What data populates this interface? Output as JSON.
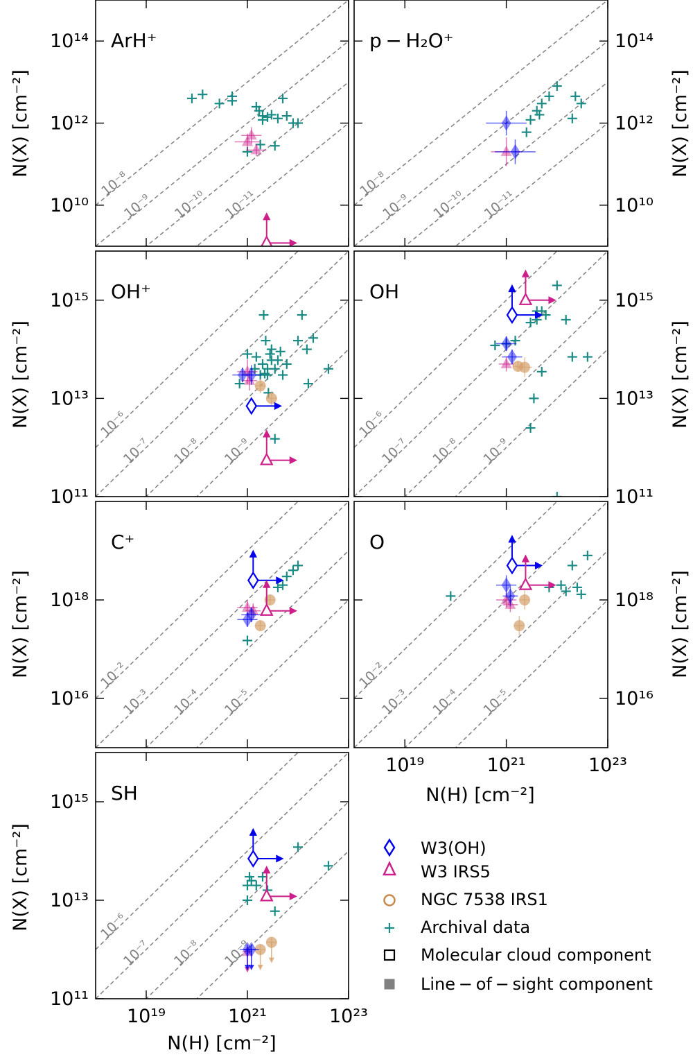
{
  "figure": {
    "xlabel": "N(H) [cm⁻²]",
    "ylabel": "N(X) [cm⁻²]"
  },
  "legend": {
    "entries": [
      {
        "marker": "diamond-open",
        "color": "#0000ee",
        "label": "W3(OH)"
      },
      {
        "marker": "triangle-open",
        "color": "#cc1f8a",
        "label": "W3 IRS5"
      },
      {
        "marker": "circle-open",
        "color": "#c8884a",
        "label": "NGC 7538 IRS1"
      },
      {
        "marker": "plus",
        "color": "#1a8a84",
        "label": "Archival data"
      },
      {
        "marker": "square-open",
        "color": "#000000",
        "label": "Molecular cloud component"
      },
      {
        "marker": "square-filled",
        "color": "#808080",
        "label": "Line − of − sight component"
      }
    ]
  },
  "colors": {
    "w3oh": "#0000ee",
    "w3irs5": "#cc1f8a",
    "ngc7538": "#d4a06a",
    "archival": "#1a8a84",
    "ratio_line": "#808080"
  },
  "chart_data": [
    {
      "id": "arhp",
      "type": "scatter",
      "title": "ArH⁺",
      "x_scale": "log",
      "y_scale": "log",
      "xlim": [
        1e+18,
        1e+23
      ],
      "ylim": [
        1000000000.0,
        1000000000000000.0
      ],
      "y_ticks": [
        "10¹⁰",
        "10¹²",
        "10¹⁴"
      ],
      "y_tick_values": [
        10000000000.0,
        1000000000000.0,
        100000000000000.0
      ],
      "ratio_lines": [
        {
          "ratio": 1e-08,
          "label": "10⁻⁸"
        },
        {
          "ratio": 1e-09,
          "label": "10⁻⁹"
        },
        {
          "ratio": 1e-10,
          "label": "10⁻¹⁰"
        },
        {
          "ratio": 1e-11,
          "label": "10⁻¹¹"
        }
      ],
      "archival": [
        [
          8e+19,
          4000000000000.0
        ],
        [
          1.3e+20,
          5000000000000.0
        ],
        [
          2.8e+20,
          3000000000000.0
        ],
        [
          5e+20,
          3500000000000.0
        ],
        [
          5e+20,
          4500000000000.0
        ],
        [
          1.5e+21,
          2500000000000.0
        ],
        [
          2e+21,
          1500000000000.0
        ],
        [
          3e+21,
          1600000000000.0
        ],
        [
          5e+21,
          4000000000000.0
        ],
        [
          1e+22,
          1000000000000.0
        ],
        [
          1.7e+21,
          2000000000000.0
        ],
        [
          4e+21,
          1300000000000.0
        ],
        [
          6e+21,
          1500000000000.0
        ],
        [
          8e+21,
          1000000000000.0
        ],
        [
          2e+21,
          1200000000000.0
        ],
        [
          2.5e+21,
          1400000000000.0
        ],
        [
          1.8e+21,
          300000000000.0
        ],
        [
          3.5e+21,
          280000000000.0
        ],
        [
          1e+21,
          200000000000.0
        ]
      ],
      "w3oh": [],
      "w3irs5": [
        {
          "x": 1e+21,
          "y": 350000000000.0,
          "xerr": 0.25,
          "yerr": 0.2,
          "filled": true
        },
        {
          "x": 1.2e+21,
          "y": 500000000000.0,
          "xerr": 0.2,
          "yerr": 0.2,
          "filled": true
        },
        {
          "x": 1.5e+21,
          "y": 220000000000.0,
          "xerr": 0.2,
          "yerr": 0.15,
          "filled": true
        }
      ],
      "w3irs5_limits": [
        {
          "x": 2.4e+21,
          "y": 1200000000.0,
          "arrow_up": true,
          "arrow_right": true
        }
      ],
      "ngc7538": [],
      "w3oh_limits": []
    },
    {
      "id": "ph2op",
      "type": "scatter",
      "title": "p − H₂O⁺",
      "x_scale": "log",
      "y_scale": "log",
      "xlim": [
        1e+18,
        1e+23
      ],
      "ylim": [
        1000000000.0,
        1000000000000000.0
      ],
      "y_ticks": [
        "10¹⁰",
        "10¹²",
        "10¹⁴"
      ],
      "y_tick_values": [
        10000000000.0,
        1000000000000.0,
        100000000000000.0
      ],
      "ratio_lines": [
        {
          "ratio": 1e-08,
          "label": "10⁻⁸"
        },
        {
          "ratio": 1e-09,
          "label": "10⁻⁹"
        },
        {
          "ratio": 1e-10,
          "label": "10⁻¹⁰"
        },
        {
          "ratio": 1e-11,
          "label": "10⁻¹¹"
        }
      ],
      "archival": [
        [
          3e+21,
          1200000000000.0
        ],
        [
          4e+21,
          2000000000000.0
        ],
        [
          5e+21,
          3000000000000.0
        ],
        [
          7e+21,
          4500000000000.0
        ],
        [
          1e+22,
          8000000000000.0
        ],
        [
          2e+22,
          1300000000000.0
        ],
        [
          2.3e+22,
          4500000000000.0
        ],
        [
          3e+22,
          3000000000000.0
        ],
        [
          2.5e+21,
          600000000000.0
        ],
        [
          4.5e+21,
          1600000000000.0
        ]
      ],
      "w3oh": [
        {
          "x": 1e+21,
          "y": 1000000000000.0,
          "xerr": 0.4,
          "yerr": 0.3,
          "filled": true
        },
        {
          "x": 1.5e+21,
          "y": 200000000000.0,
          "xerr": 0.4,
          "yerr": 0.3,
          "filled": true
        }
      ],
      "w3irs5": [
        {
          "x": 1e+21,
          "y": 200000000000.0,
          "xerr": 0.3,
          "yerr": 0.35,
          "filled": true
        }
      ],
      "w3irs5_limits": [],
      "ngc7538": [],
      "w3oh_limits": []
    },
    {
      "id": "ohp",
      "type": "scatter",
      "title": "OH⁺",
      "x_scale": "log",
      "y_scale": "log",
      "xlim": [
        1e+18,
        1e+23
      ],
      "ylim": [
        100000000000.0,
        1e+16
      ],
      "y_ticks": [
        "10¹¹",
        "10¹³",
        "10¹⁵"
      ],
      "y_tick_values": [
        100000000000.0,
        10000000000000.0,
        1000000000000000.0
      ],
      "ratio_lines": [
        {
          "ratio": 1e-06,
          "label": "10⁻⁶"
        },
        {
          "ratio": 1e-07,
          "label": "10⁻⁷"
        },
        {
          "ratio": 1e-08,
          "label": "10⁻⁸"
        },
        {
          "ratio": 1e-09,
          "label": "10⁻⁹"
        }
      ],
      "archival": [
        [
          7e+20,
          20000000000000.0
        ],
        [
          1e+21,
          80000000000000.0
        ],
        [
          1.4e+21,
          40000000000000.0
        ],
        [
          2e+21,
          50000000000000.0
        ],
        [
          2.1e+21,
          500000000000000.0
        ],
        [
          2.3e+21,
          150000000000000.0
        ],
        [
          2.5e+21,
          30000000000000.0
        ],
        [
          2.8e+21,
          80000000000000.0
        ],
        [
          3e+21,
          60000000000000.0
        ],
        [
          3.5e+21,
          40000000000000.0
        ],
        [
          4e+21,
          60000000000000.0
        ],
        [
          5e+21,
          30000000000000.0
        ],
        [
          6e+21,
          50000000000000.0
        ],
        [
          1e+22,
          150000000000000.0
        ],
        [
          1.2e+22,
          500000000000000.0
        ],
        [
          1.5e+22,
          100000000000000.0
        ],
        [
          1.6e+22,
          20000000000000.0
        ],
        [
          2e+22,
          170000000000000.0
        ],
        [
          4e+22,
          40000000000000.0
        ],
        [
          3e+21,
          100000000000000.0
        ],
        [
          4.5e+21,
          90000000000000.0
        ],
        [
          2.5e+21,
          40000000000000.0
        ],
        [
          3.5e+21,
          1500000000000.0
        ],
        [
          1.5e+21,
          70000000000000.0
        ],
        [
          2.6e+21,
          13000000000000.0
        ],
        [
          2.2e+21,
          32000000000000.0
        ],
        [
          1.8e+21,
          30000000000000.0
        ]
      ],
      "w3oh": [
        {
          "x": 1.2e+21,
          "y": 30000000000000.0,
          "xerr": 0.2,
          "yerr": 0.2,
          "filled": true
        },
        {
          "x": 8e+20,
          "y": 30000000000000.0,
          "xerr": 0.2,
          "yerr": 0.15,
          "filled": true
        }
      ],
      "w3oh_limits": [
        {
          "x": 1.2e+21,
          "y": 7000000000000.0,
          "arrow_up": false,
          "arrow_right": true
        }
      ],
      "w3irs5": [
        {
          "x": 1e+21,
          "y": 35000000000000.0,
          "xerr": 0.2,
          "yerr": 0.25,
          "filled": true
        },
        {
          "x": 1.1e+21,
          "y": 23000000000000.0,
          "xerr": 0.15,
          "yerr": 0.2,
          "filled": true
        }
      ],
      "w3irs5_limits": [
        {
          "x": 2.4e+21,
          "y": 550000000000.0,
          "arrow_up": true,
          "arrow_right": true
        }
      ],
      "ngc7538": [
        {
          "x": 1.8e+21,
          "y": 18000000000000.0,
          "xerr": 0.1,
          "yerr": 0.15
        },
        {
          "x": 3e+21,
          "y": 10000000000000.0,
          "xerr": 0.1,
          "yerr": 0.15
        }
      ]
    },
    {
      "id": "oh",
      "type": "scatter",
      "title": "OH",
      "x_scale": "log",
      "y_scale": "log",
      "xlim": [
        1e+18,
        1e+23
      ],
      "ylim": [
        100000000000.0,
        1e+16
      ],
      "y_ticks": [
        "10¹¹",
        "10¹³",
        "10¹⁵"
      ],
      "y_tick_values": [
        100000000000.0,
        10000000000000.0,
        1000000000000000.0
      ],
      "ratio_lines": [
        {
          "ratio": 1e-06,
          "label": "10⁻⁶"
        },
        {
          "ratio": 1e-07,
          "label": "10⁻⁷"
        },
        {
          "ratio": 1e-08,
          "label": "10⁻⁸"
        },
        {
          "ratio": 1e-09,
          "label": "10⁻⁹"
        }
      ],
      "archival": [
        [
          6e+20,
          120000000000000.0
        ],
        [
          1e+21,
          130000000000000.0
        ],
        [
          1.5e+21,
          150000000000000.0
        ],
        [
          3e+21,
          350000000000000.0
        ],
        [
          4e+21,
          400000000000000.0
        ],
        [
          5e+21,
          600000000000000.0
        ],
        [
          6e+21,
          500000000000000.0
        ],
        [
          1e+22,
          2000000000000000.0
        ],
        [
          1.5e+22,
          400000000000000.0
        ],
        [
          2e+22,
          70000000000000.0
        ],
        [
          4e+22,
          70000000000000.0
        ],
        [
          3.5e+21,
          10000000000000.0
        ],
        [
          3e+21,
          2500000000000.0
        ],
        [
          5e+21,
          35000000000000.0
        ],
        [
          1e+22,
          100000000000.0
        ],
        [
          4e+21,
          600000000000000.0
        ]
      ],
      "w3oh": [
        {
          "x": 1e+21,
          "y": 130000000000000.0,
          "xerr": 0.2,
          "yerr": 0.15,
          "filled": true
        },
        {
          "x": 1.3e+21,
          "y": 70000000000000.0,
          "xerr": 0.2,
          "yerr": 0.15,
          "filled": true
        }
      ],
      "w3oh_limits": [
        {
          "x": 1.3e+21,
          "y": 500000000000000.0,
          "arrow_up": true,
          "arrow_right": true
        }
      ],
      "w3irs5": [
        {
          "x": 1e+21,
          "y": 50000000000000.0,
          "xerr": 0.15,
          "yerr": 0.15,
          "filled": true
        }
      ],
      "w3irs5_limits": [
        {
          "x": 2.4e+21,
          "y": 1000000000000000.0,
          "arrow_up": true,
          "arrow_right": true
        }
      ],
      "ngc7538": [
        {
          "x": 1.7e+21,
          "y": 45000000000000.0,
          "xerr": 0.1,
          "yerr": 0.1
        },
        {
          "x": 2.3e+21,
          "y": 43000000000000.0,
          "xerr": 0.15,
          "yerr": 0.2
        }
      ]
    },
    {
      "id": "cp",
      "type": "scatter",
      "title": "C⁺",
      "x_scale": "log",
      "y_scale": "log",
      "xlim": [
        1e+18,
        1e+23
      ],
      "ylim": [
        1000000000000000.0,
        1e+20
      ],
      "y_ticks": [
        "10¹⁶",
        "10¹⁸"
      ],
      "y_tick_values": [
        1e+16,
        1e+18
      ],
      "ratio_lines": [
        {
          "ratio": 0.01,
          "label": "10⁻²"
        },
        {
          "ratio": 0.001,
          "label": "10⁻³"
        },
        {
          "ratio": 0.0001,
          "label": "10⁻⁴"
        },
        {
          "ratio": 1e-05,
          "label": "10⁻⁵"
        }
      ],
      "archival": [
        [
          1e+21,
          1.5e+17
        ],
        [
          4e+21,
          1.8e+18
        ],
        [
          5e+21,
          2e+18
        ],
        [
          6e+21,
          3e+18
        ],
        [
          8e+21,
          4e+18
        ],
        [
          1e+22,
          5e+18
        ]
      ],
      "w3oh": [
        {
          "x": 1e+21,
          "y": 4e+17,
          "xerr": 0.2,
          "yerr": 0.15,
          "filled": true
        },
        {
          "x": 1.2e+21,
          "y": 5e+17,
          "xerr": 0.2,
          "yerr": 0.15,
          "filled": true
        }
      ],
      "w3oh_limits": [
        {
          "x": 1.3e+21,
          "y": 2.5e+18,
          "arrow_up": true,
          "arrow_right": true
        }
      ],
      "w3irs5": [
        {
          "x": 1e+21,
          "y": 7e+17,
          "xerr": 0.2,
          "yerr": 0.15,
          "filled": true
        },
        {
          "x": 1.3e+21,
          "y": 6e+17,
          "xerr": 0.15,
          "yerr": 0.15,
          "filled": true
        }
      ],
      "w3irs5_limits": [
        {
          "x": 2.4e+21,
          "y": 6e+17,
          "arrow_up": true,
          "arrow_right": true
        }
      ],
      "ngc7538": [
        {
          "x": 2.8e+21,
          "y": 1e+18,
          "xerr": 0.1,
          "yerr": 0.1
        },
        {
          "x": 1.8e+21,
          "y": 3e+17,
          "xerr": 0.1,
          "yerr": 0.1
        }
      ]
    },
    {
      "id": "o",
      "type": "scatter",
      "title": "O",
      "x_scale": "log",
      "y_scale": "log",
      "xlim": [
        1e+18,
        1e+23
      ],
      "ylim": [
        1000000000000000.0,
        1e+20
      ],
      "y_ticks": [
        "10¹⁶",
        "10¹⁸"
      ],
      "y_tick_values": [
        1e+16,
        1e+18
      ],
      "ratio_lines": [
        {
          "ratio": 0.01,
          "label": "10⁻²"
        },
        {
          "ratio": 0.001,
          "label": "10⁻³"
        },
        {
          "ratio": 0.0001,
          "label": "10⁻⁴"
        },
        {
          "ratio": 1e-05,
          "label": "10⁻⁵"
        }
      ],
      "archival": [
        [
          8e+19,
          1.2e+18
        ],
        [
          7e+21,
          1.8e+18
        ],
        [
          1.2e+22,
          2e+18
        ],
        [
          1.5e+22,
          1.5e+18
        ],
        [
          2e+22,
          5e+18
        ],
        [
          3e+22,
          1.3e+18
        ],
        [
          4e+22,
          8e+18
        ],
        [
          2.5e+22,
          1.8e+18
        ]
      ],
      "w3oh": [
        {
          "x": 1e+21,
          "y": 2e+18,
          "xerr": 0.2,
          "yerr": 0.2,
          "filled": true
        },
        {
          "x": 1.2e+21,
          "y": 1.2e+18,
          "xerr": 0.15,
          "yerr": 0.2,
          "filled": true
        }
      ],
      "w3oh_limits": [
        {
          "x": 1.3e+21,
          "y": 5e+18,
          "arrow_up": true,
          "arrow_right": true
        }
      ],
      "w3irs5": [
        {
          "x": 1e+21,
          "y": 1e+18,
          "xerr": 0.2,
          "yerr": 0.15,
          "filled": true
        },
        {
          "x": 1.2e+21,
          "y": 8e+17,
          "xerr": 0.15,
          "yerr": 0.15,
          "filled": true
        }
      ],
      "w3irs5_limits": [
        {
          "x": 2.4e+21,
          "y": 2e+18,
          "arrow_up": true,
          "arrow_right": true
        }
      ],
      "ngc7538": [
        {
          "x": 1.8e+21,
          "y": 3e+17,
          "xerr": 0.1,
          "yerr": 0.2
        },
        {
          "x": 2.3e+21,
          "y": 1e+18,
          "xerr": 0.1,
          "yerr": 0.2
        }
      ]
    },
    {
      "id": "sh",
      "type": "scatter",
      "title": "SH",
      "x_scale": "log",
      "y_scale": "log",
      "xlim": [
        1e+18,
        1e+23
      ],
      "ylim": [
        100000000000.0,
        1e+16
      ],
      "y_ticks": [
        "10¹¹",
        "10¹³",
        "10¹⁵"
      ],
      "y_tick_values": [
        100000000000.0,
        10000000000000.0,
        1000000000000000.0
      ],
      "ratio_lines": [
        {
          "ratio": 1e-06,
          "label": "10⁻⁶"
        },
        {
          "ratio": 1e-07,
          "label": "10⁻⁷"
        },
        {
          "ratio": 1e-08,
          "label": "10⁻⁸"
        },
        {
          "ratio": 1e-09,
          "label": "10⁻⁹"
        }
      ],
      "archival": [
        [
          1e+21,
          10000000000000.0
        ],
        [
          1e+21,
          20000000000000.0
        ],
        [
          1.2e+21,
          25000000000000.0
        ],
        [
          1.5e+21,
          20000000000000.0
        ],
        [
          2e+21,
          30000000000000.0
        ],
        [
          2.5e+21,
          16000000000000.0
        ],
        [
          3.5e+21,
          6000000000000.0
        ],
        [
          1e+22,
          120000000000000.0
        ],
        [
          4e+22,
          50000000000000.0
        ],
        [
          1.1e+21,
          30000000000000.0
        ]
      ],
      "w3oh": [
        {
          "x": 1e+21,
          "y": 1000000000000.0,
          "xerr": 0.15,
          "yerr": 0.1,
          "filled": true,
          "down": true
        },
        {
          "x": 1.2e+21,
          "y": 1000000000000.0,
          "xerr": 0.15,
          "yerr": 0.1,
          "filled": true,
          "down": true
        }
      ],
      "w3oh_limits": [
        {
          "x": 1.3e+21,
          "y": 70000000000000.0,
          "arrow_up": true,
          "arrow_right": true
        }
      ],
      "w3irs5": [
        {
          "x": 1e+21,
          "y": 900000000000.0,
          "xerr": 0.1,
          "yerr": 0.1,
          "filled": true,
          "down": true
        }
      ],
      "w3irs5_limits": [
        {
          "x": 2.4e+21,
          "y": 12000000000000.0,
          "arrow_up": true,
          "arrow_right": true
        }
      ],
      "ngc7538": [
        {
          "x": 1.8e+21,
          "y": 1000000000000.0,
          "xerr": 0.1,
          "yerr": 0.1,
          "down": true
        },
        {
          "x": 3e+21,
          "y": 1400000000000.0,
          "xerr": 0.1,
          "yerr": 0.1,
          "down": true
        }
      ]
    }
  ],
  "x_ticks": [
    "10¹⁹",
    "10²¹",
    "10²³"
  ],
  "x_tick_values": [
    1e+19,
    1e+21,
    1e+23
  ]
}
